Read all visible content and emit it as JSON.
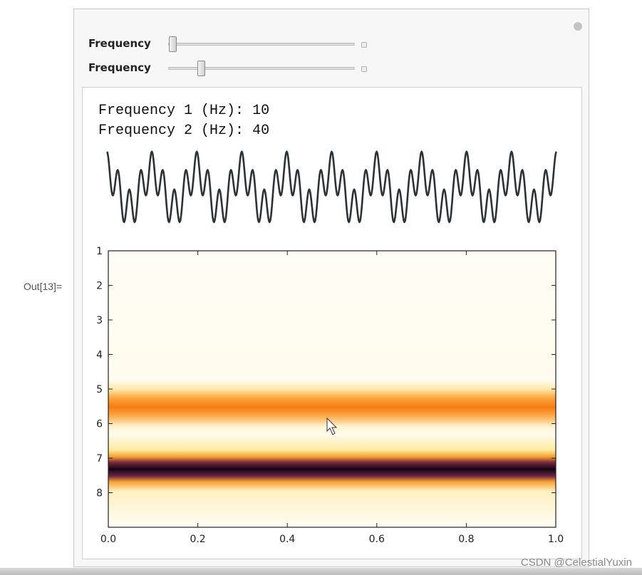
{
  "controls": [
    {
      "label": "Frequency"
    },
    {
      "label": "Frequency"
    }
  ],
  "readout": [
    {
      "label": "Frequency 1 (Hz):",
      "value": 10
    },
    {
      "label": "Frequency 2 (Hz):",
      "value": 40
    }
  ],
  "output_label": "Out[13]=",
  "plot": {
    "xlim": [
      0,
      1
    ],
    "xticks": [
      {
        "value": 0,
        "label": "0.0"
      },
      0.2,
      0.4,
      0.6,
      0.8,
      {
        "value": 1,
        "label": "1.0"
      }
    ],
    "ylim": [
      1,
      9
    ],
    "yticks": [
      1,
      2,
      3,
      4,
      5,
      6,
      7,
      8
    ]
  },
  "watermark": "CSDN @CelestialYuxin"
}
